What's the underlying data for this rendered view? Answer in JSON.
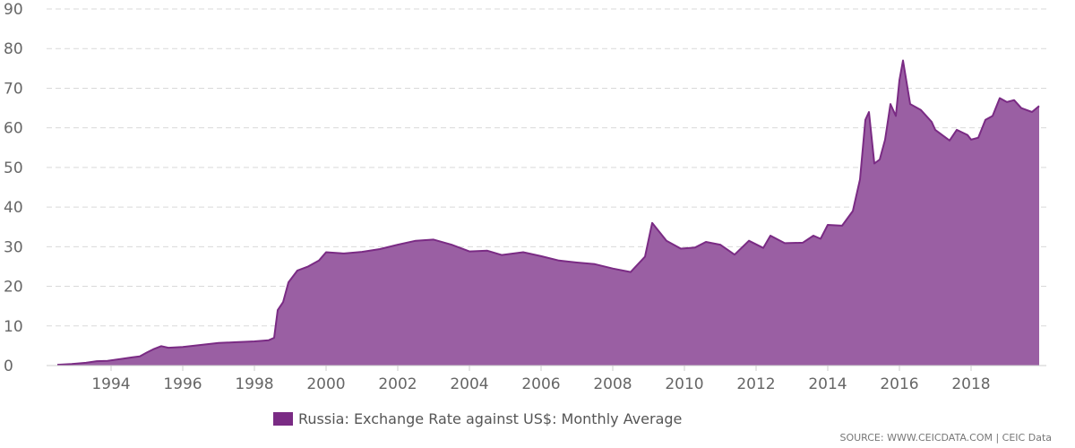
{
  "chart_data": {
    "type": "area",
    "title": "",
    "xlabel": "",
    "ylabel": "",
    "ylim": [
      0,
      90
    ],
    "yticks": [
      "0",
      "10",
      "20",
      "30",
      "40",
      "50",
      "60",
      "70",
      "80",
      "90"
    ],
    "xlim": [
      1992.2,
      2020.1
    ],
    "xticks": [
      "1994",
      "1996",
      "1998",
      "2000",
      "2002",
      "2004",
      "2006",
      "2008",
      "2010",
      "2012",
      "2014",
      "2016",
      "2018"
    ],
    "grid": true,
    "legend_position": "bottom",
    "series": [
      {
        "name": "Russia: Exchange Rate against US$: Monthly Average",
        "color": "#7a2b84",
        "fill": "#9a5fa3",
        "points": [
          [
            1992.5,
            0.2
          ],
          [
            1992.9,
            0.4
          ],
          [
            1993.3,
            0.7
          ],
          [
            1993.6,
            1.1
          ],
          [
            1993.9,
            1.2
          ],
          [
            1994.3,
            1.7
          ],
          [
            1994.6,
            2.1
          ],
          [
            1994.8,
            2.3
          ],
          [
            1995.0,
            3.3
          ],
          [
            1995.2,
            4.2
          ],
          [
            1995.4,
            4.9
          ],
          [
            1995.6,
            4.5
          ],
          [
            1996.0,
            4.7
          ],
          [
            1996.5,
            5.2
          ],
          [
            1997.0,
            5.7
          ],
          [
            1997.5,
            5.9
          ],
          [
            1998.0,
            6.1
          ],
          [
            1998.4,
            6.4
          ],
          [
            1998.55,
            7.0
          ],
          [
            1998.65,
            14.0
          ],
          [
            1998.8,
            16.0
          ],
          [
            1998.95,
            21.0
          ],
          [
            1999.2,
            24.0
          ],
          [
            1999.5,
            25.0
          ],
          [
            1999.8,
            26.5
          ],
          [
            2000.0,
            28.6
          ],
          [
            2000.5,
            28.3
          ],
          [
            2001.0,
            28.7
          ],
          [
            2001.5,
            29.4
          ],
          [
            2002.0,
            30.5
          ],
          [
            2002.5,
            31.5
          ],
          [
            2003.0,
            31.8
          ],
          [
            2003.5,
            30.5
          ],
          [
            2004.0,
            28.8
          ],
          [
            2004.5,
            29.0
          ],
          [
            2004.9,
            27.9
          ],
          [
            2005.5,
            28.6
          ],
          [
            2006.0,
            27.6
          ],
          [
            2006.5,
            26.5
          ],
          [
            2007.0,
            26.0
          ],
          [
            2007.5,
            25.6
          ],
          [
            2008.0,
            24.5
          ],
          [
            2008.5,
            23.6
          ],
          [
            2008.9,
            27.5
          ],
          [
            2009.1,
            36.0
          ],
          [
            2009.5,
            31.5
          ],
          [
            2009.9,
            29.5
          ],
          [
            2010.3,
            29.8
          ],
          [
            2010.6,
            31.2
          ],
          [
            2011.0,
            30.5
          ],
          [
            2011.4,
            28.0
          ],
          [
            2011.8,
            31.5
          ],
          [
            2012.2,
            29.7
          ],
          [
            2012.4,
            32.8
          ],
          [
            2012.8,
            30.9
          ],
          [
            2013.3,
            31.0
          ],
          [
            2013.6,
            32.8
          ],
          [
            2013.8,
            32.0
          ],
          [
            2014.0,
            35.5
          ],
          [
            2014.4,
            35.3
          ],
          [
            2014.7,
            39.0
          ],
          [
            2014.9,
            47.0
          ],
          [
            2015.05,
            62.0
          ],
          [
            2015.15,
            64.0
          ],
          [
            2015.3,
            51.0
          ],
          [
            2015.45,
            52.0
          ],
          [
            2015.6,
            57.0
          ],
          [
            2015.75,
            66.0
          ],
          [
            2015.9,
            63.0
          ],
          [
            2016.0,
            72.0
          ],
          [
            2016.1,
            77.0
          ],
          [
            2016.3,
            66.0
          ],
          [
            2016.6,
            64.5
          ],
          [
            2016.9,
            61.5
          ],
          [
            2017.0,
            59.5
          ],
          [
            2017.4,
            56.8
          ],
          [
            2017.6,
            59.5
          ],
          [
            2017.9,
            58.2
          ],
          [
            2018.0,
            57.0
          ],
          [
            2018.2,
            57.5
          ],
          [
            2018.4,
            62.0
          ],
          [
            2018.6,
            63.0
          ],
          [
            2018.8,
            67.5
          ],
          [
            2019.0,
            66.5
          ],
          [
            2019.2,
            67.0
          ],
          [
            2019.4,
            65.0
          ],
          [
            2019.7,
            64.0
          ],
          [
            2019.9,
            65.5
          ]
        ]
      }
    ]
  },
  "source_text": "SOURCE: WWW.CEICDATA.COM | CEIC Data"
}
